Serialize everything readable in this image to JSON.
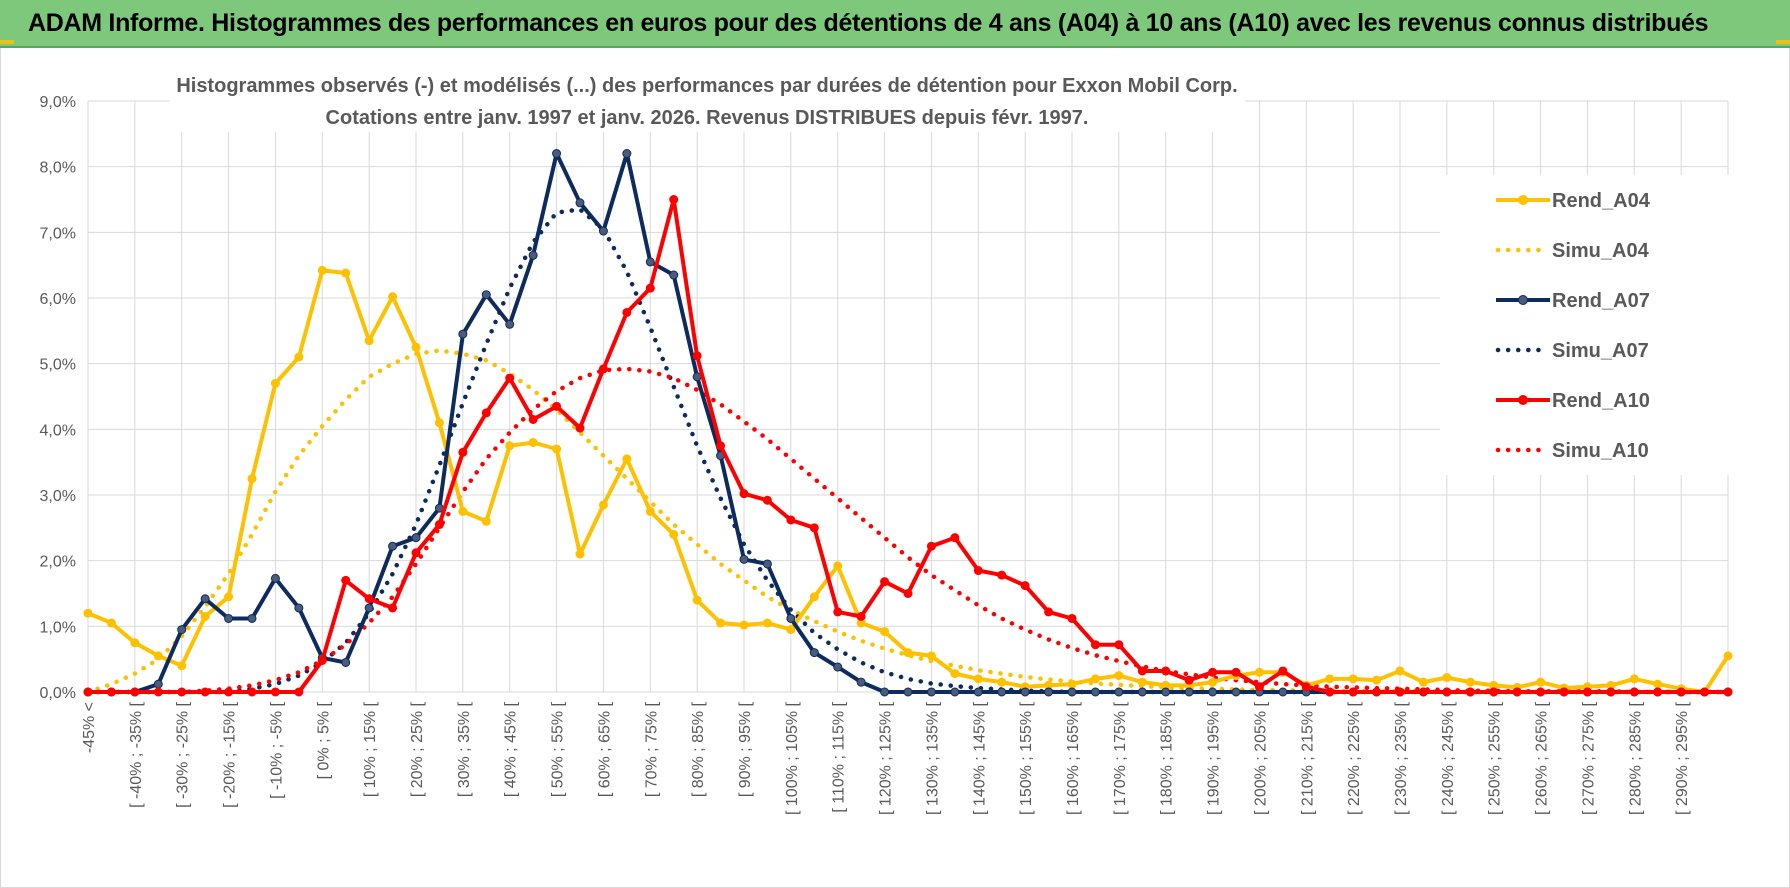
{
  "banner": {
    "title": "ADAM Informe. Histogrammes des performances en euros pour des détentions de 4 ans (A04) à 10 ans (A10) avec les revenus connus distribués"
  },
  "colors": {
    "banner_bg": "#7ec87c",
    "grid": "#d9d9d9",
    "A04": "#ffc000",
    "A07": "#0d2b5e",
    "A10": "#ff0000",
    "A07_marker": "#4a5c7a",
    "A10_marker": "#ff0000"
  },
  "chart_data": {
    "type": "line",
    "title": "Histogrammes observés (-) et modélisés (...) des performances par durées de détention pour Exxon Mobil Corp.",
    "subtitle": "Cotations entre janv. 1997 et janv. 2026. Revenus DISTRIBUES depuis févr. 1997.",
    "ylim": [
      0,
      9
    ],
    "y_ticks": [
      "0,0%",
      "1,0%",
      "2,0%",
      "3,0%",
      "4,0%",
      "5,0%",
      "6,0%",
      "7,0%",
      "8,0%",
      "9,0%"
    ],
    "grid": true,
    "legend_position": "right",
    "x_tick_labels": [
      "-45% <",
      "[ -40% ; -35% [",
      "[ -30% ; -25% [",
      "[ -20% ; -15% [",
      "[ -10% ; -5% [",
      "[ 0% ; 5% [",
      "[ 10% ; 15% [",
      "[ 20% ; 25% [",
      "[ 30% ; 35% [",
      "[ 40% ; 45% [",
      "[ 50% ; 55% [",
      "[ 60% ; 65% [",
      "[ 70% ; 75% [",
      "[ 80% ; 85% [",
      "[ 90% ; 95% [",
      "[ 100% ; 105% [",
      "[ 110% ; 115% [",
      "[ 120% ; 125% [",
      "[ 130% ; 135% [",
      "[ 140% ; 145% [",
      "[ 150% ; 155% [",
      "[ 160% ; 165% [",
      "[ 170% ; 175% [",
      "[ 180% ; 185% [",
      "[ 190% ; 195% [",
      "[ 200% ; 205% [",
      "[ 210% ; 215% [",
      "[ 220% ; 225% [",
      "[ 230% ; 235% [",
      "[ 240% ; 245% [",
      "[ 250% ; 255% [",
      "[ 260% ; 265% [",
      "[ 270% ; 275% [",
      "[ 280% ; 285% [",
      "[ 290% ; 295% ["
    ],
    "series": [
      {
        "name": "Rend_A04",
        "style": "solid-marker",
        "color": "#ffc000",
        "values": [
          1.2,
          1.05,
          0.75,
          0.55,
          0.4,
          1.15,
          1.45,
          3.25,
          4.7,
          5.1,
          6.42,
          6.38,
          5.35,
          6.02,
          5.25,
          4.1,
          2.75,
          2.6,
          3.75,
          3.8,
          3.7,
          2.1,
          2.85,
          3.55,
          2.75,
          2.4,
          1.4,
          1.05,
          1.02,
          1.05,
          0.95,
          1.45,
          1.92,
          1.05,
          0.92,
          0.6,
          0.55,
          0.28,
          0.2,
          0.15,
          0.08,
          0.1,
          0.12,
          0.2,
          0.25,
          0.15,
          0.1,
          0.1,
          0.15,
          0.25,
          0.3,
          0.3,
          0.1,
          0.2,
          0.2,
          0.18,
          0.32,
          0.15,
          0.22,
          0.15,
          0.1,
          0.07,
          0.15,
          0.06,
          0.08,
          0.1,
          0.2,
          0.12,
          0.05,
          0,
          0.55
        ]
      },
      {
        "name": "Simu_A04",
        "style": "dotted",
        "color": "#ffc000",
        "values": [
          0,
          0.12,
          0.28,
          0.5,
          0.85,
          1.3,
          1.8,
          2.4,
          3.05,
          3.6,
          4.05,
          4.45,
          4.8,
          5.0,
          5.15,
          5.2,
          5.15,
          5.05,
          4.85,
          4.6,
          4.3,
          3.95,
          3.6,
          3.25,
          2.9,
          2.55,
          2.25,
          1.95,
          1.7,
          1.45,
          1.25,
          1.08,
          0.92,
          0.78,
          0.66,
          0.56,
          0.47,
          0.4,
          0.33,
          0.28,
          0.23,
          0.19,
          0.16,
          0.13,
          0.11,
          0.09,
          0.07,
          0.06,
          0.05,
          0.04,
          0.03,
          0.03,
          0.02,
          0.02,
          0.01,
          0.01,
          0.01,
          0.01,
          0,
          0,
          0,
          0,
          0,
          0,
          0,
          0,
          0,
          0,
          0,
          0,
          0
        ]
      },
      {
        "name": "Rend_A07",
        "style": "solid-marker",
        "color": "#0d2b5e",
        "values": [
          0,
          0,
          0,
          0.12,
          0.95,
          1.42,
          1.12,
          1.12,
          1.73,
          1.28,
          0.52,
          0.45,
          1.28,
          2.22,
          2.35,
          2.8,
          5.45,
          6.05,
          5.6,
          6.65,
          8.2,
          7.45,
          7.02,
          8.2,
          6.55,
          6.35,
          4.8,
          3.6,
          2.02,
          1.95,
          1.12,
          0.6,
          0.38,
          0.15,
          0,
          0,
          0,
          0,
          0,
          0,
          0,
          0,
          0,
          0,
          0,
          0,
          0,
          0,
          0,
          0,
          0,
          0,
          0,
          0,
          0,
          0,
          0,
          0,
          0,
          0,
          0,
          0,
          0,
          0,
          0,
          0,
          0,
          0,
          0,
          0,
          0
        ]
      },
      {
        "name": "Simu_A07",
        "style": "dotted",
        "color": "#0d2b5e",
        "values": [
          0,
          0,
          0,
          0,
          0,
          0,
          0,
          0.05,
          0.12,
          0.25,
          0.45,
          0.75,
          1.2,
          1.8,
          2.55,
          3.45,
          4.4,
          5.3,
          6.15,
          6.85,
          7.3,
          7.35,
          7.05,
          6.4,
          5.55,
          4.65,
          3.75,
          2.95,
          2.25,
          1.7,
          1.25,
          0.9,
          0.65,
          0.45,
          0.3,
          0.2,
          0.13,
          0.09,
          0.06,
          0.04,
          0.02,
          0.01,
          0,
          0,
          0,
          0,
          0,
          0,
          0,
          0,
          0,
          0,
          0,
          0,
          0,
          0,
          0,
          0,
          0,
          0,
          0,
          0,
          0,
          0,
          0,
          0,
          0,
          0,
          0,
          0,
          0
        ]
      },
      {
        "name": "Rend_A10",
        "style": "solid-marker",
        "color": "#ff0000",
        "values": [
          0,
          0,
          0,
          0,
          0,
          0,
          0,
          0,
          0,
          0,
          0.48,
          1.7,
          1.42,
          1.28,
          2.12,
          2.55,
          3.65,
          4.25,
          4.78,
          4.15,
          4.35,
          4.02,
          4.92,
          5.78,
          6.15,
          7.5,
          5.12,
          3.75,
          3.02,
          2.92,
          2.62,
          2.5,
          1.22,
          1.15,
          1.68,
          1.5,
          2.22,
          2.35,
          1.85,
          1.78,
          1.62,
          1.22,
          1.12,
          0.72,
          0.72,
          0.32,
          0.32,
          0.18,
          0.3,
          0.3,
          0.08,
          0.32,
          0.08,
          0,
          0,
          0,
          0,
          0,
          0,
          0,
          0,
          0,
          0,
          0,
          0,
          0,
          0,
          0,
          0,
          0,
          0
        ]
      },
      {
        "name": "Simu_A10",
        "style": "dotted",
        "color": "#ff0000",
        "values": [
          0,
          0,
          0,
          0,
          0,
          0.02,
          0.05,
          0.1,
          0.18,
          0.3,
          0.48,
          0.72,
          1.05,
          1.45,
          1.95,
          2.5,
          3.05,
          3.55,
          3.95,
          4.3,
          4.58,
          4.78,
          4.9,
          4.92,
          4.88,
          4.78,
          4.6,
          4.38,
          4.12,
          3.85,
          3.55,
          3.25,
          2.95,
          2.65,
          2.35,
          2.05,
          1.78,
          1.55,
          1.32,
          1.12,
          0.95,
          0.8,
          0.67,
          0.56,
          0.47,
          0.39,
          0.32,
          0.27,
          0.22,
          0.18,
          0.15,
          0.12,
          0.1,
          0.08,
          0.07,
          0.06,
          0.05,
          0.04,
          0.03,
          0.02,
          0.02,
          0.01,
          0.01,
          0.01,
          0.01,
          0.01,
          0,
          0,
          0,
          0,
          0
        ]
      }
    ]
  }
}
